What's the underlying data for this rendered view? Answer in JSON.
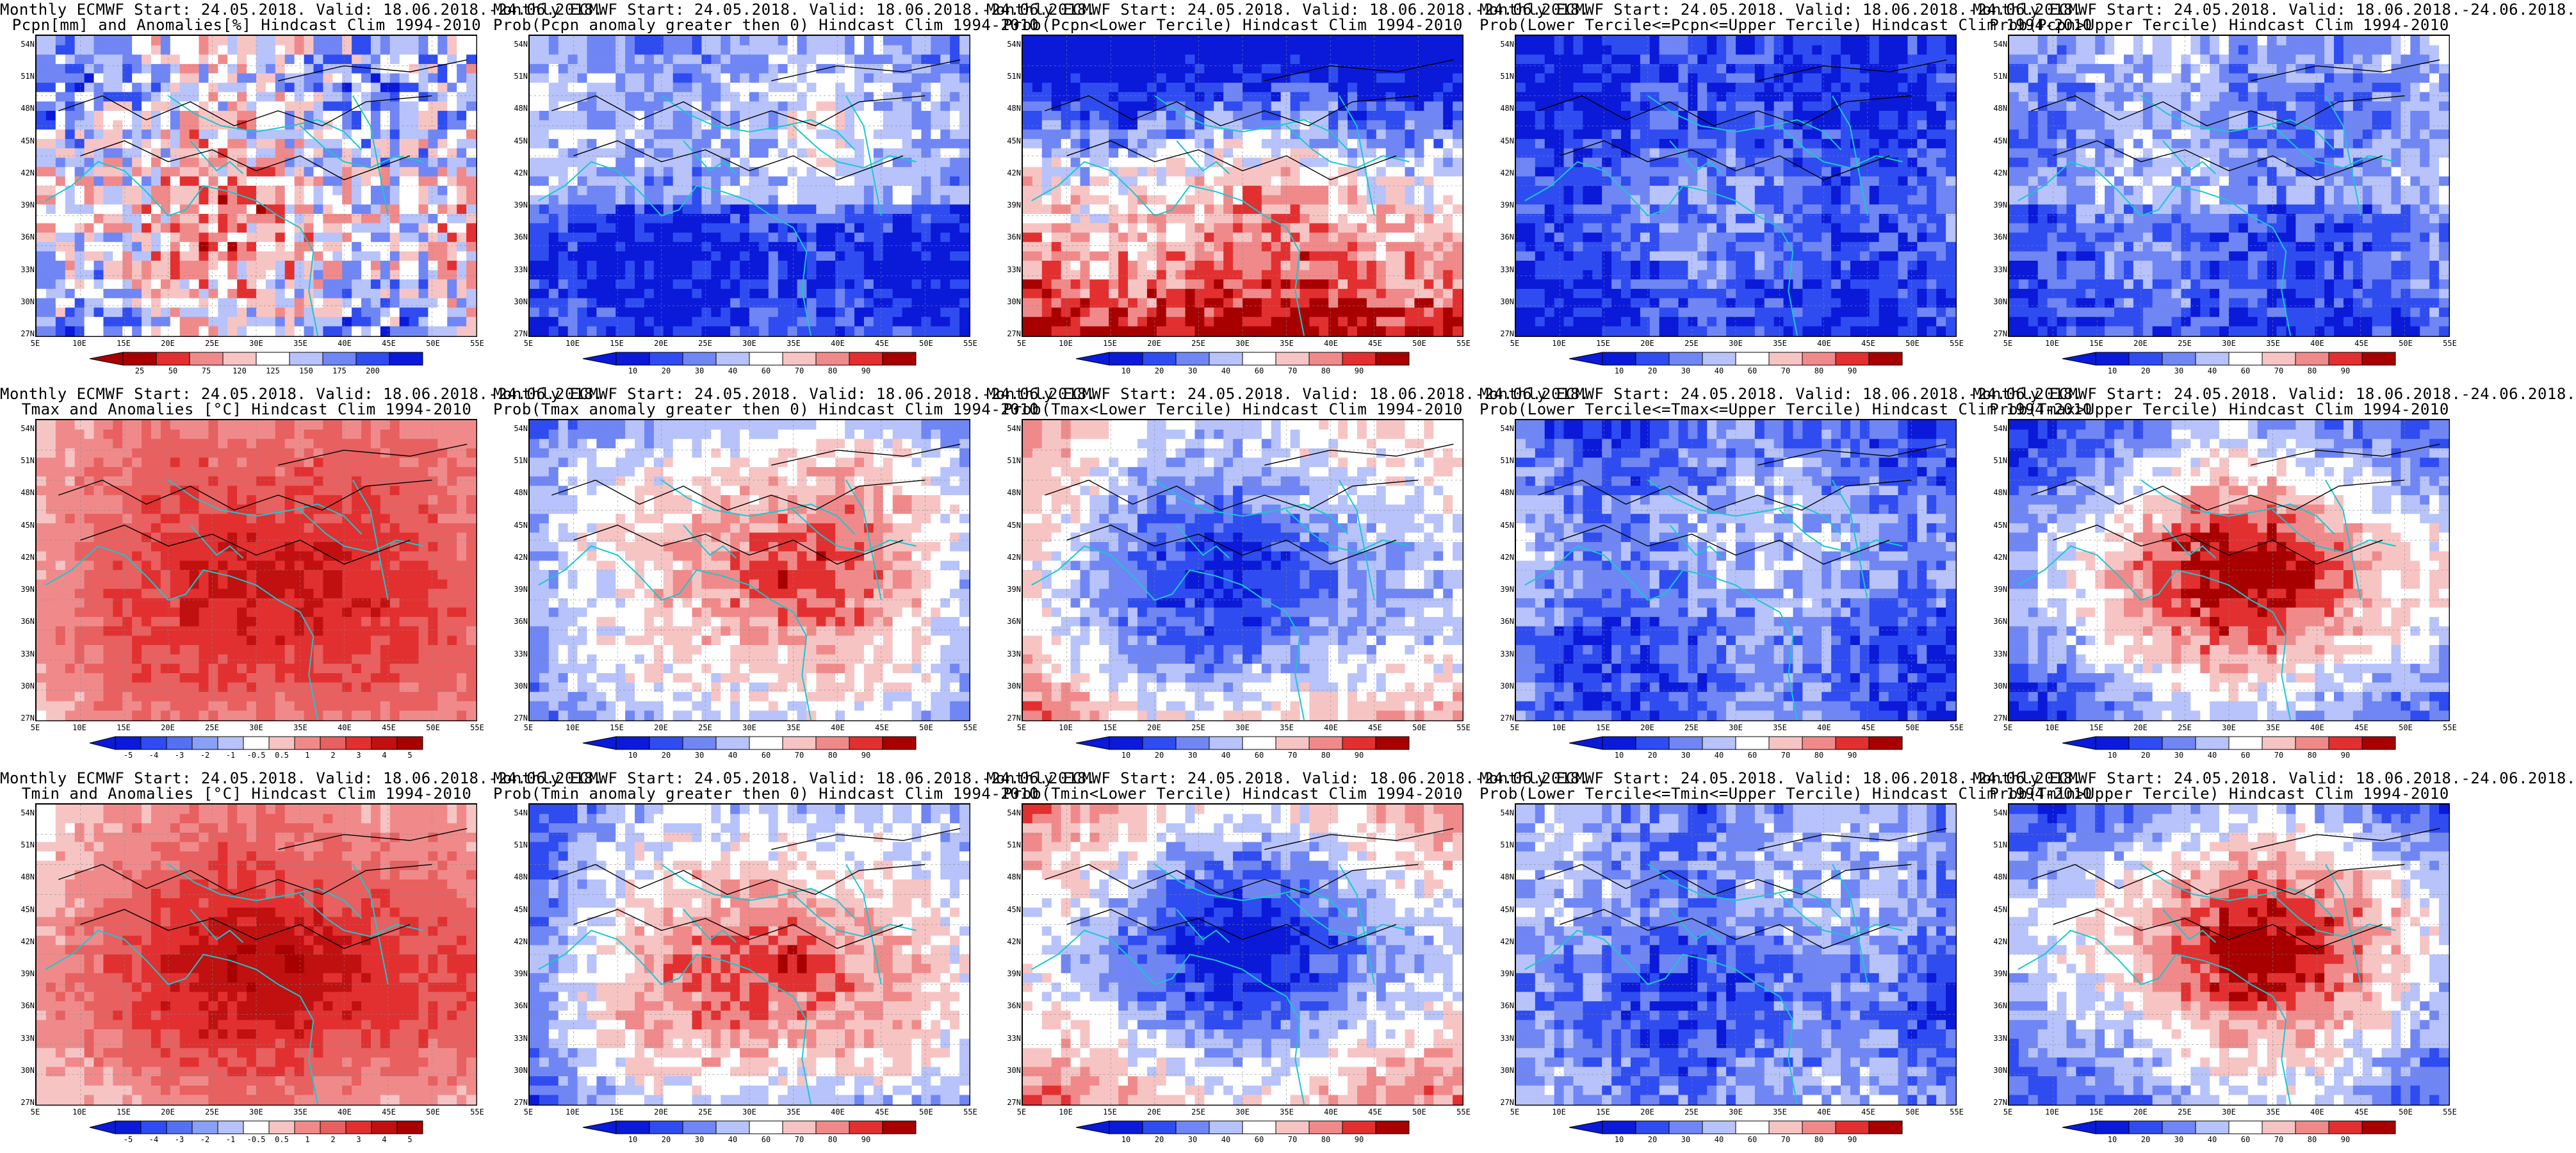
{
  "lat_labels": [
    "54N",
    "51N",
    "48N",
    "45N",
    "42N",
    "39N",
    "36N",
    "33N",
    "30N",
    "27N"
  ],
  "lon_labels": [
    "5E",
    "10E",
    "15E",
    "20E",
    "25E",
    "30E",
    "35E",
    "40E",
    "45E",
    "50E",
    "55E"
  ],
  "colors": {
    "deep_blue": "#0a1ad8",
    "blue": "#2f4cf0",
    "mid_blue": "#6f86f4",
    "light_blue": "#b7c3fa",
    "white": "#ffffff",
    "light_red": "#f7c4c4",
    "mid_red": "#f08a8a",
    "red": "#e23030",
    "dark_red": "#a80000",
    "coast": "#18c8d0",
    "contour": "#000000"
  },
  "scales": {
    "pcpn_anom": [
      "25",
      "50",
      "75",
      "120",
      "125",
      "150",
      "175",
      "200"
    ],
    "temp_anom": [
      "-5",
      "-4",
      "-3",
      "-2",
      "-1",
      "-0.5",
      "0.5",
      "1",
      "2",
      "3",
      "4",
      "5"
    ],
    "prob": [
      "10",
      "20",
      "30",
      "40",
      "60",
      "70",
      "80",
      "90"
    ]
  },
  "panels": [
    {
      "title1": "Monthly ECMWF Start: 24.05.2018. Valid: 18.06.2018.-24.06.2018.",
      "title2": "Pcpn[mm] and Anomalies[%] Hindcast Clim 1994-2010",
      "field": "pcpn_anom",
      "scale": "pcpn_anom"
    },
    {
      "title1": "Monthly ECMWF Start: 24.05.2018. Valid: 18.06.2018.-24.06.2018.",
      "title2": "Prob(Pcpn anomaly greater then 0) Hindcast Clim 1994-2010",
      "field": "pcpn_pos",
      "scale": "prob"
    },
    {
      "title1": "Monthly ECMWF Start: 24.05.2018. Valid: 18.06.2018.-24.06.2018.",
      "title2": "Prob(Pcpn<Lower Tercile) Hindcast Clim 1994-2010",
      "field": "pcpn_low",
      "scale": "prob"
    },
    {
      "title1": "Monthly ECMWF Start: 24.05.2018. Valid: 18.06.2018.-24.06.2018.",
      "title2": "Prob(Lower Tercile<=Pcpn<=Upper Tercile) Hindcast Clim 1994-2010",
      "field": "pcpn_mid",
      "scale": "prob"
    },
    {
      "title1": "Monthly ECMWF Start: 24.05.2018. Valid: 18.06.2018.-24.06.2018.",
      "title2": "Prob(Pcpn>Upper Tercile) Hindcast Clim 1994-2010",
      "field": "pcpn_up",
      "scale": "prob"
    },
    {
      "title1": "Monthly ECMWF Start: 24.05.2018. Valid: 18.06.2018.-24.06.2018.",
      "title2": "Tmax and Anomalies [°C] Hindcast Clim 1994-2010",
      "field": "tmax_anom",
      "scale": "temp_anom"
    },
    {
      "title1": "Monthly ECMWF Start: 24.05.2018. Valid: 18.06.2018.-24.06.2018.",
      "title2": "Prob(Tmax anomaly greater then 0) Hindcast Clim 1994-2010",
      "field": "tmax_pos",
      "scale": "prob"
    },
    {
      "title1": "Monthly ECMWF Start: 24.05.2018. Valid: 18.06.2018.-24.06.2018.",
      "title2": "Prob(Tmax<Lower Tercile) Hindcast Clim 1994-2010",
      "field": "tmax_low",
      "scale": "prob"
    },
    {
      "title1": "Monthly ECMWF Start: 24.05.2018. Valid: 18.06.2018.-24.06.2018.",
      "title2": "Prob(Lower Tercile<=Tmax<=Upper Tercile) Hindcast Clim 1994-2010",
      "field": "tmax_mid",
      "scale": "prob"
    },
    {
      "title1": "Monthly ECMWF Start: 24.05.2018. Valid: 18.06.2018.-24.06.2018.",
      "title2": "Prob(Tmax>Upper Tercile) Hindcast Clim 1994-2010",
      "field": "tmax_up",
      "scale": "prob"
    },
    {
      "title1": "Monthly ECMWF Start: 24.05.2018. Valid: 18.06.2018.-24.06.2018.",
      "title2": "Tmin and Anomalies [°C] Hindcast Clim 1994-2010",
      "field": "tmin_anom",
      "scale": "temp_anom"
    },
    {
      "title1": "Monthly ECMWF Start: 24.05.2018. Valid: 18.06.2018.-24.06.2018.",
      "title2": "Prob(Tmin anomaly greater then 0) Hindcast Clim 1994-2010",
      "field": "tmin_pos",
      "scale": "prob"
    },
    {
      "title1": "Monthly ECMWF Start: 24.05.2018. Valid: 18.06.2018.-24.06.2018.",
      "title2": "Prob(Tmin<Lower Tercile) Hindcast Clim 1994-2010",
      "field": "tmin_low",
      "scale": "prob"
    },
    {
      "title1": "Monthly ECMWF Start: 24.05.2018. Valid: 18.06.2018.-24.06.2018.",
      "title2": "Prob(Lower Tercile<=Tmin<=Upper Tercile) Hindcast Clim 1994-2010",
      "field": "tmin_mid",
      "scale": "prob"
    },
    {
      "title1": "Monthly ECMWF Start: 24.05.2018. Valid: 18.06.2018.-24.06.2018.",
      "title2": "Prob(Tmin>Upper Tercile) Hindcast Clim 1994-2010",
      "field": "tmin_up",
      "scale": "prob"
    }
  ]
}
